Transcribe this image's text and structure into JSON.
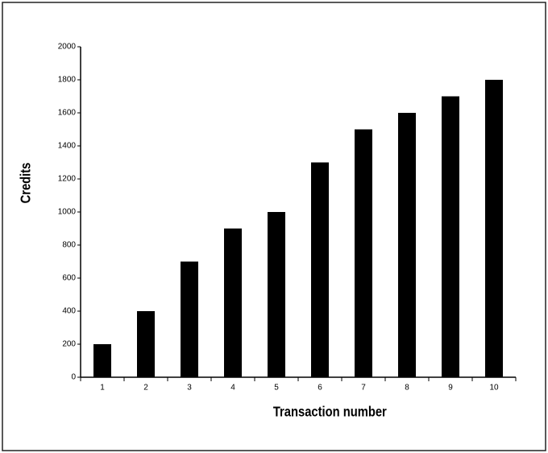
{
  "chart_data": {
    "type": "bar",
    "categories": [
      "1",
      "2",
      "3",
      "4",
      "5",
      "6",
      "7",
      "8",
      "9",
      "10"
    ],
    "values": [
      200,
      400,
      700,
      900,
      1000,
      1300,
      1500,
      1600,
      1700,
      1800
    ],
    "color": "#000000",
    "xlabel": "Transaction number",
    "ylabel": "Credits",
    "ylim": [
      0,
      2000
    ],
    "yticks": [
      0,
      200,
      400,
      600,
      800,
      1000,
      1200,
      1400,
      1600,
      1800,
      2000
    ],
    "grid": false
  }
}
